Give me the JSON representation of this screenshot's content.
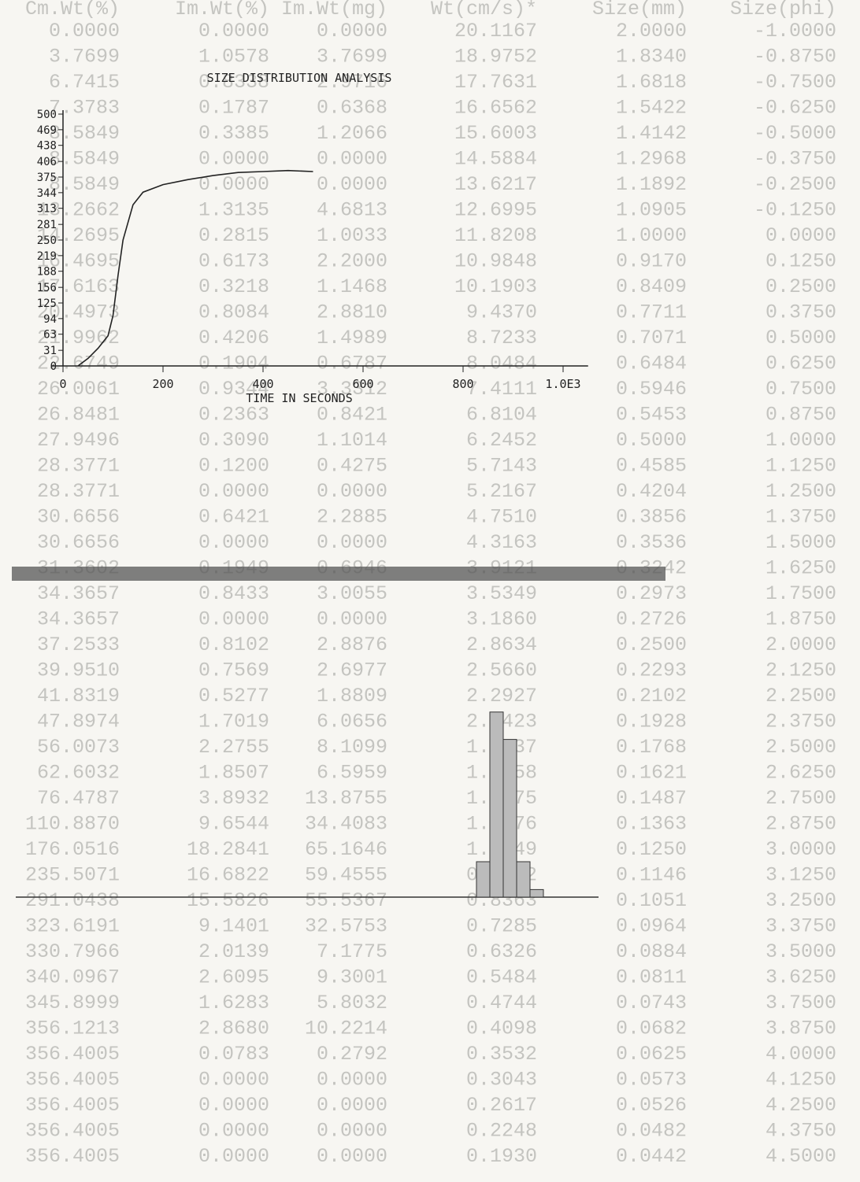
{
  "table": {
    "header": [
      "Size(phi)",
      "Size(mm)",
      "Wt(cm/s)*",
      "Im.Wt(mg)",
      "Im.Wt(%)",
      "Cm.Wt(%)"
    ],
    "rows": [
      [
        "-1.0000",
        "2.0000",
        "20.1167",
        "0.0000",
        "0.0000",
        "0.0000"
      ],
      [
        "-0.8750",
        "1.8340",
        "18.9752",
        "3.7699",
        "1.0578",
        "3.7699"
      ],
      [
        "-0.7500",
        "1.6818",
        "17.7631",
        "2.9716",
        "0.8338",
        "6.7415"
      ],
      [
        "-0.6250",
        "1.5422",
        "16.6562",
        "0.6368",
        "0.1787",
        "7.3783"
      ],
      [
        "-0.5000",
        "1.4142",
        "15.6003",
        "1.2066",
        "0.3385",
        "8.5849"
      ],
      [
        "-0.3750",
        "1.2968",
        "14.5884",
        "0.0000",
        "0.0000",
        "8.5849"
      ],
      [
        "-0.2500",
        "1.1892",
        "13.6217",
        "0.0000",
        "0.0000",
        "8.5849"
      ],
      [
        "-0.1250",
        "1.0905",
        "12.6995",
        "4.6813",
        "1.3135",
        "13.2662"
      ],
      [
        "0.0000",
        "1.0000",
        "11.8208",
        "1.0033",
        "0.2815",
        "14.2695"
      ],
      [
        "0.1250",
        "0.9170",
        "10.9848",
        "2.2000",
        "0.6173",
        "16.4695"
      ],
      [
        "0.2500",
        "0.8409",
        "10.1903",
        "1.1468",
        "0.3218",
        "17.6163"
      ],
      [
        "0.3750",
        "0.7711",
        "9.4370",
        "2.8810",
        "0.8084",
        "20.4973"
      ],
      [
        "0.5000",
        "0.7071",
        "8.7233",
        "1.4989",
        "0.4206",
        "21.9962"
      ],
      [
        "0.6250",
        "0.6484",
        "8.0484",
        "0.6787",
        "0.1904",
        "22.6749"
      ],
      [
        "0.7500",
        "0.5946",
        "7.4111",
        "3.3312",
        "0.9344",
        "26.0061"
      ],
      [
        "0.8750",
        "0.5453",
        "6.8104",
        "0.8421",
        "0.2363",
        "26.8481"
      ],
      [
        "1.0000",
        "0.5000",
        "6.2452",
        "1.1014",
        "0.3090",
        "27.9496"
      ],
      [
        "1.1250",
        "0.4585",
        "5.7143",
        "0.4275",
        "0.1200",
        "28.3771"
      ],
      [
        "1.2500",
        "0.4204",
        "5.2167",
        "0.0000",
        "0.0000",
        "28.3771"
      ],
      [
        "1.3750",
        "0.3856",
        "4.7510",
        "2.2885",
        "0.6421",
        "30.6656"
      ],
      [
        "1.5000",
        "0.3536",
        "4.3163",
        "0.0000",
        "0.0000",
        "30.6656"
      ],
      [
        "1.6250",
        "0.3242",
        "3.9121",
        "0.6946",
        "0.1949",
        "31.3602"
      ],
      [
        "1.7500",
        "0.2973",
        "3.5349",
        "3.0055",
        "0.8433",
        "34.3657"
      ],
      [
        "1.8750",
        "0.2726",
        "3.1860",
        "0.0000",
        "0.0000",
        "34.3657"
      ],
      [
        "2.0000",
        "0.2500",
        "2.8634",
        "2.8876",
        "0.8102",
        "37.2533"
      ],
      [
        "2.1250",
        "0.2293",
        "2.5660",
        "2.6977",
        "0.7569",
        "39.9510"
      ],
      [
        "2.2500",
        "0.2102",
        "2.2927",
        "1.8809",
        "0.5277",
        "41.8319"
      ],
      [
        "2.3750",
        "0.1928",
        "2.0423",
        "6.0656",
        "1.7019",
        "47.8974"
      ],
      [
        "2.5000",
        "0.1768",
        "1.8137",
        "8.1099",
        "2.2755",
        "56.0073"
      ],
      [
        "2.6250",
        "0.1621",
        "1.6058",
        "6.5959",
        "1.8507",
        "62.6032"
      ],
      [
        "2.7500",
        "0.1487",
        "1.4175",
        "13.8755",
        "3.8932",
        "76.4787"
      ],
      [
        "2.8750",
        "0.1363",
        "1.2476",
        "34.4083",
        "9.6544",
        "110.8870"
      ],
      [
        "3.0000",
        "0.1250",
        "1.0949",
        "65.1646",
        "18.2841",
        "176.0516"
      ],
      [
        "3.1250",
        "0.1146",
        "0.9582",
        "59.4555",
        "16.6822",
        "235.5071"
      ],
      [
        "3.2500",
        "0.1051",
        "0.8363",
        "55.5367",
        "15.5826",
        "291.0438"
      ],
      [
        "3.3750",
        "0.0964",
        "0.7285",
        "32.5753",
        "9.1401",
        "323.6191"
      ],
      [
        "3.5000",
        "0.0884",
        "0.6326",
        "7.1775",
        "2.0139",
        "330.7966"
      ],
      [
        "3.6250",
        "0.0811",
        "0.5484",
        "9.3001",
        "2.6095",
        "340.0967"
      ],
      [
        "3.7500",
        "0.0743",
        "0.4744",
        "5.8032",
        "1.6283",
        "345.8999"
      ],
      [
        "3.8750",
        "0.0682",
        "0.4098",
        "10.2214",
        "2.8680",
        "356.1213"
      ],
      [
        "4.0000",
        "0.0625",
        "0.3532",
        "0.2792",
        "0.0783",
        "356.4005"
      ],
      [
        "4.1250",
        "0.0573",
        "0.3043",
        "0.0000",
        "0.0000",
        "356.4005"
      ],
      [
        "4.2500",
        "0.0526",
        "0.2617",
        "0.0000",
        "0.0000",
        "356.4005"
      ],
      [
        "4.3750",
        "0.0482",
        "0.2248",
        "0.0000",
        "0.0000",
        "356.4005"
      ],
      [
        "4.5000",
        "0.0442",
        "0.1930",
        "0.0000",
        "0.0000",
        "356.4005"
      ]
    ]
  },
  "chart_data": [
    {
      "type": "line",
      "title": "SIZE DISTRIBUTION ANALYSIS",
      "x_label": "TIME IN SECONDS",
      "x": [
        30,
        50,
        70,
        90,
        100,
        110,
        120,
        140,
        160,
        200,
        250,
        300,
        350,
        400,
        450,
        500
      ],
      "values": [
        0,
        15,
        35,
        60,
        100,
        180,
        250,
        320,
        345,
        360,
        370,
        378,
        384,
        386,
        388,
        386
      ],
      "xlim": [
        0,
        1050
      ],
      "ylim": [
        0,
        500
      ],
      "xticks": [
        0,
        200,
        400,
        600,
        800,
        {
          "value": 1000,
          "label": "1.0E3"
        }
      ],
      "yticks": [
        0,
        31,
        63,
        94,
        125,
        156,
        188,
        219,
        250,
        281,
        313,
        344,
        375,
        406,
        438,
        469,
        500
      ]
    },
    {
      "type": "bar",
      "values": [
        3.75,
        19.6,
        16.7,
        3.75,
        0.8
      ],
      "ylim": [
        0,
        20
      ]
    }
  ]
}
